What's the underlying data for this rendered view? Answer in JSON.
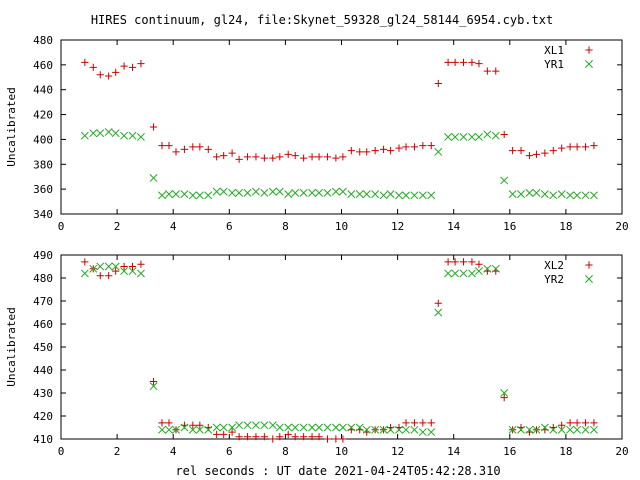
{
  "title": "HIRES continuum, gl24, file:Skynet_59328_gl24_58144_6954.cyb.txt",
  "xlabel": "rel seconds : UT date 2021-04-24T05:42:28.310",
  "colors": {
    "xl": "#cc0000",
    "yr": "#22aa22",
    "frame": "#000000"
  },
  "chart_data": [
    {
      "type": "scatter",
      "ylabel": "Uncalibrated",
      "xlim": [
        0,
        20
      ],
      "ylim": [
        340,
        480
      ],
      "xticks": [
        0,
        2,
        4,
        6,
        8,
        10,
        12,
        14,
        16,
        18,
        20
      ],
      "yticks": [
        340,
        360,
        380,
        400,
        420,
        440,
        460,
        480
      ],
      "legend_position": "top-right",
      "series": [
        {
          "name": "XL1",
          "marker": "plus",
          "x": [
            0.85,
            1.15,
            1.4,
            1.7,
            1.95,
            2.25,
            2.55,
            2.85,
            3.3,
            3.6,
            3.85,
            4.1,
            4.4,
            4.7,
            4.95,
            5.25,
            5.55,
            5.8,
            6.1,
            6.35,
            6.65,
            6.95,
            7.25,
            7.55,
            7.8,
            8.1,
            8.35,
            8.65,
            8.95,
            9.2,
            9.5,
            9.8,
            10.05,
            10.35,
            10.65,
            10.9,
            11.2,
            11.5,
            11.75,
            12.05,
            12.3,
            12.6,
            12.9,
            13.2,
            13.45,
            13.8,
            14.05,
            14.35,
            14.65,
            14.9,
            15.2,
            15.5,
            15.8,
            16.1,
            16.4,
            16.7,
            16.95,
            17.25,
            17.55,
            17.85,
            18.15,
            18.4,
            18.7,
            19.0
          ],
          "y": [
            462,
            458,
            452,
            451,
            454,
            459,
            458,
            461,
            410,
            395,
            395,
            390,
            392,
            394,
            394,
            392,
            386,
            387,
            389,
            384,
            386,
            386,
            385,
            385,
            386,
            388,
            387,
            385,
            386,
            386,
            386,
            385,
            386,
            391,
            390,
            390,
            391,
            392,
            391,
            393,
            394,
            394,
            395,
            395,
            445,
            462,
            462,
            462,
            462,
            461,
            455,
            455,
            404,
            391,
            391,
            387,
            388,
            389,
            391,
            393,
            394,
            394,
            394,
            395
          ]
        },
        {
          "name": "YR1",
          "marker": "cross",
          "x": [
            0.85,
            1.15,
            1.4,
            1.7,
            1.95,
            2.25,
            2.55,
            2.85,
            3.3,
            3.6,
            3.85,
            4.1,
            4.4,
            4.7,
            4.95,
            5.25,
            5.55,
            5.8,
            6.1,
            6.35,
            6.65,
            6.95,
            7.25,
            7.55,
            7.8,
            8.1,
            8.35,
            8.65,
            8.95,
            9.2,
            9.5,
            9.8,
            10.05,
            10.35,
            10.65,
            10.9,
            11.2,
            11.5,
            11.75,
            12.05,
            12.3,
            12.6,
            12.9,
            13.2,
            13.45,
            13.8,
            14.05,
            14.35,
            14.65,
            14.9,
            15.2,
            15.5,
            15.8,
            16.1,
            16.4,
            16.7,
            16.95,
            17.25,
            17.55,
            17.85,
            18.15,
            18.4,
            18.7,
            19.0
          ],
          "y": [
            403,
            405,
            405,
            406,
            405,
            403,
            403,
            402,
            369,
            355,
            356,
            356,
            356,
            355,
            355,
            355,
            358,
            358,
            357,
            357,
            357,
            358,
            357,
            358,
            358,
            356,
            357,
            357,
            357,
            357,
            357,
            358,
            358,
            356,
            356,
            356,
            356,
            355,
            356,
            355,
            355,
            355,
            355,
            355,
            390,
            402,
            402,
            402,
            402,
            402,
            404,
            403,
            367,
            356,
            356,
            357,
            357,
            356,
            355,
            356,
            355,
            355,
            355,
            355
          ]
        }
      ]
    },
    {
      "type": "scatter",
      "ylabel": "Uncalibrated",
      "xlim": [
        0,
        20
      ],
      "ylim": [
        410,
        490
      ],
      "xticks": [
        0,
        2,
        4,
        6,
        8,
        10,
        12,
        14,
        16,
        18,
        20
      ],
      "yticks": [
        410,
        420,
        430,
        440,
        450,
        460,
        470,
        480,
        490
      ],
      "legend_position": "top-right",
      "series": [
        {
          "name": "XL2",
          "marker": "plus",
          "x": [
            0.85,
            1.15,
            1.4,
            1.7,
            1.95,
            2.25,
            2.55,
            2.85,
            3.3,
            3.6,
            3.85,
            4.1,
            4.4,
            4.7,
            4.95,
            5.25,
            5.55,
            5.8,
            6.1,
            6.35,
            6.65,
            6.95,
            7.25,
            7.55,
            7.8,
            8.1,
            8.35,
            8.65,
            8.95,
            9.2,
            9.5,
            9.8,
            10.05,
            10.35,
            10.65,
            10.9,
            11.2,
            11.5,
            11.75,
            12.05,
            12.3,
            12.6,
            12.9,
            13.2,
            13.45,
            13.8,
            14.05,
            14.35,
            14.65,
            14.9,
            15.2,
            15.5,
            15.8,
            16.1,
            16.4,
            16.7,
            16.95,
            17.25,
            17.55,
            17.85,
            18.15,
            18.4,
            18.7,
            19.0
          ],
          "y": [
            487,
            484,
            481,
            481,
            483,
            485,
            485,
            486,
            435,
            417,
            417,
            414,
            416,
            416,
            416,
            415,
            412,
            412,
            413,
            411,
            411,
            411,
            411,
            410,
            411,
            412,
            411,
            411,
            411,
            411,
            410,
            410,
            410,
            414,
            414,
            413,
            414,
            414,
            415,
            415,
            417,
            417,
            417,
            417,
            469,
            487,
            487,
            487,
            487,
            486,
            483,
            483,
            428,
            414,
            415,
            413,
            414,
            414,
            415,
            416,
            417,
            417,
            417,
            417
          ]
        },
        {
          "name": "YR2",
          "marker": "cross",
          "x": [
            0.85,
            1.15,
            1.4,
            1.7,
            1.95,
            2.25,
            2.55,
            2.85,
            3.3,
            3.6,
            3.85,
            4.1,
            4.4,
            4.7,
            4.95,
            5.25,
            5.55,
            5.8,
            6.1,
            6.35,
            6.65,
            6.95,
            7.25,
            7.55,
            7.8,
            8.1,
            8.35,
            8.65,
            8.95,
            9.2,
            9.5,
            9.8,
            10.05,
            10.35,
            10.65,
            10.9,
            11.2,
            11.5,
            11.75,
            12.05,
            12.3,
            12.6,
            12.9,
            13.2,
            13.45,
            13.8,
            14.05,
            14.35,
            14.65,
            14.9,
            15.2,
            15.5,
            15.8,
            16.1,
            16.4,
            16.7,
            16.95,
            17.25,
            17.55,
            17.85,
            18.15,
            18.4,
            18.7,
            19.0
          ],
          "y": [
            482,
            484,
            485,
            485,
            485,
            483,
            483,
            482,
            433,
            414,
            414,
            414,
            415,
            414,
            414,
            414,
            415,
            415,
            415,
            416,
            416,
            416,
            416,
            416,
            415,
            415,
            415,
            415,
            415,
            415,
            415,
            415,
            415,
            415,
            415,
            414,
            414,
            414,
            414,
            414,
            414,
            414,
            413,
            413,
            465,
            482,
            482,
            482,
            482,
            483,
            484,
            484,
            430,
            414,
            414,
            414,
            414,
            415,
            414,
            414,
            414,
            414,
            414,
            414
          ]
        }
      ]
    }
  ]
}
